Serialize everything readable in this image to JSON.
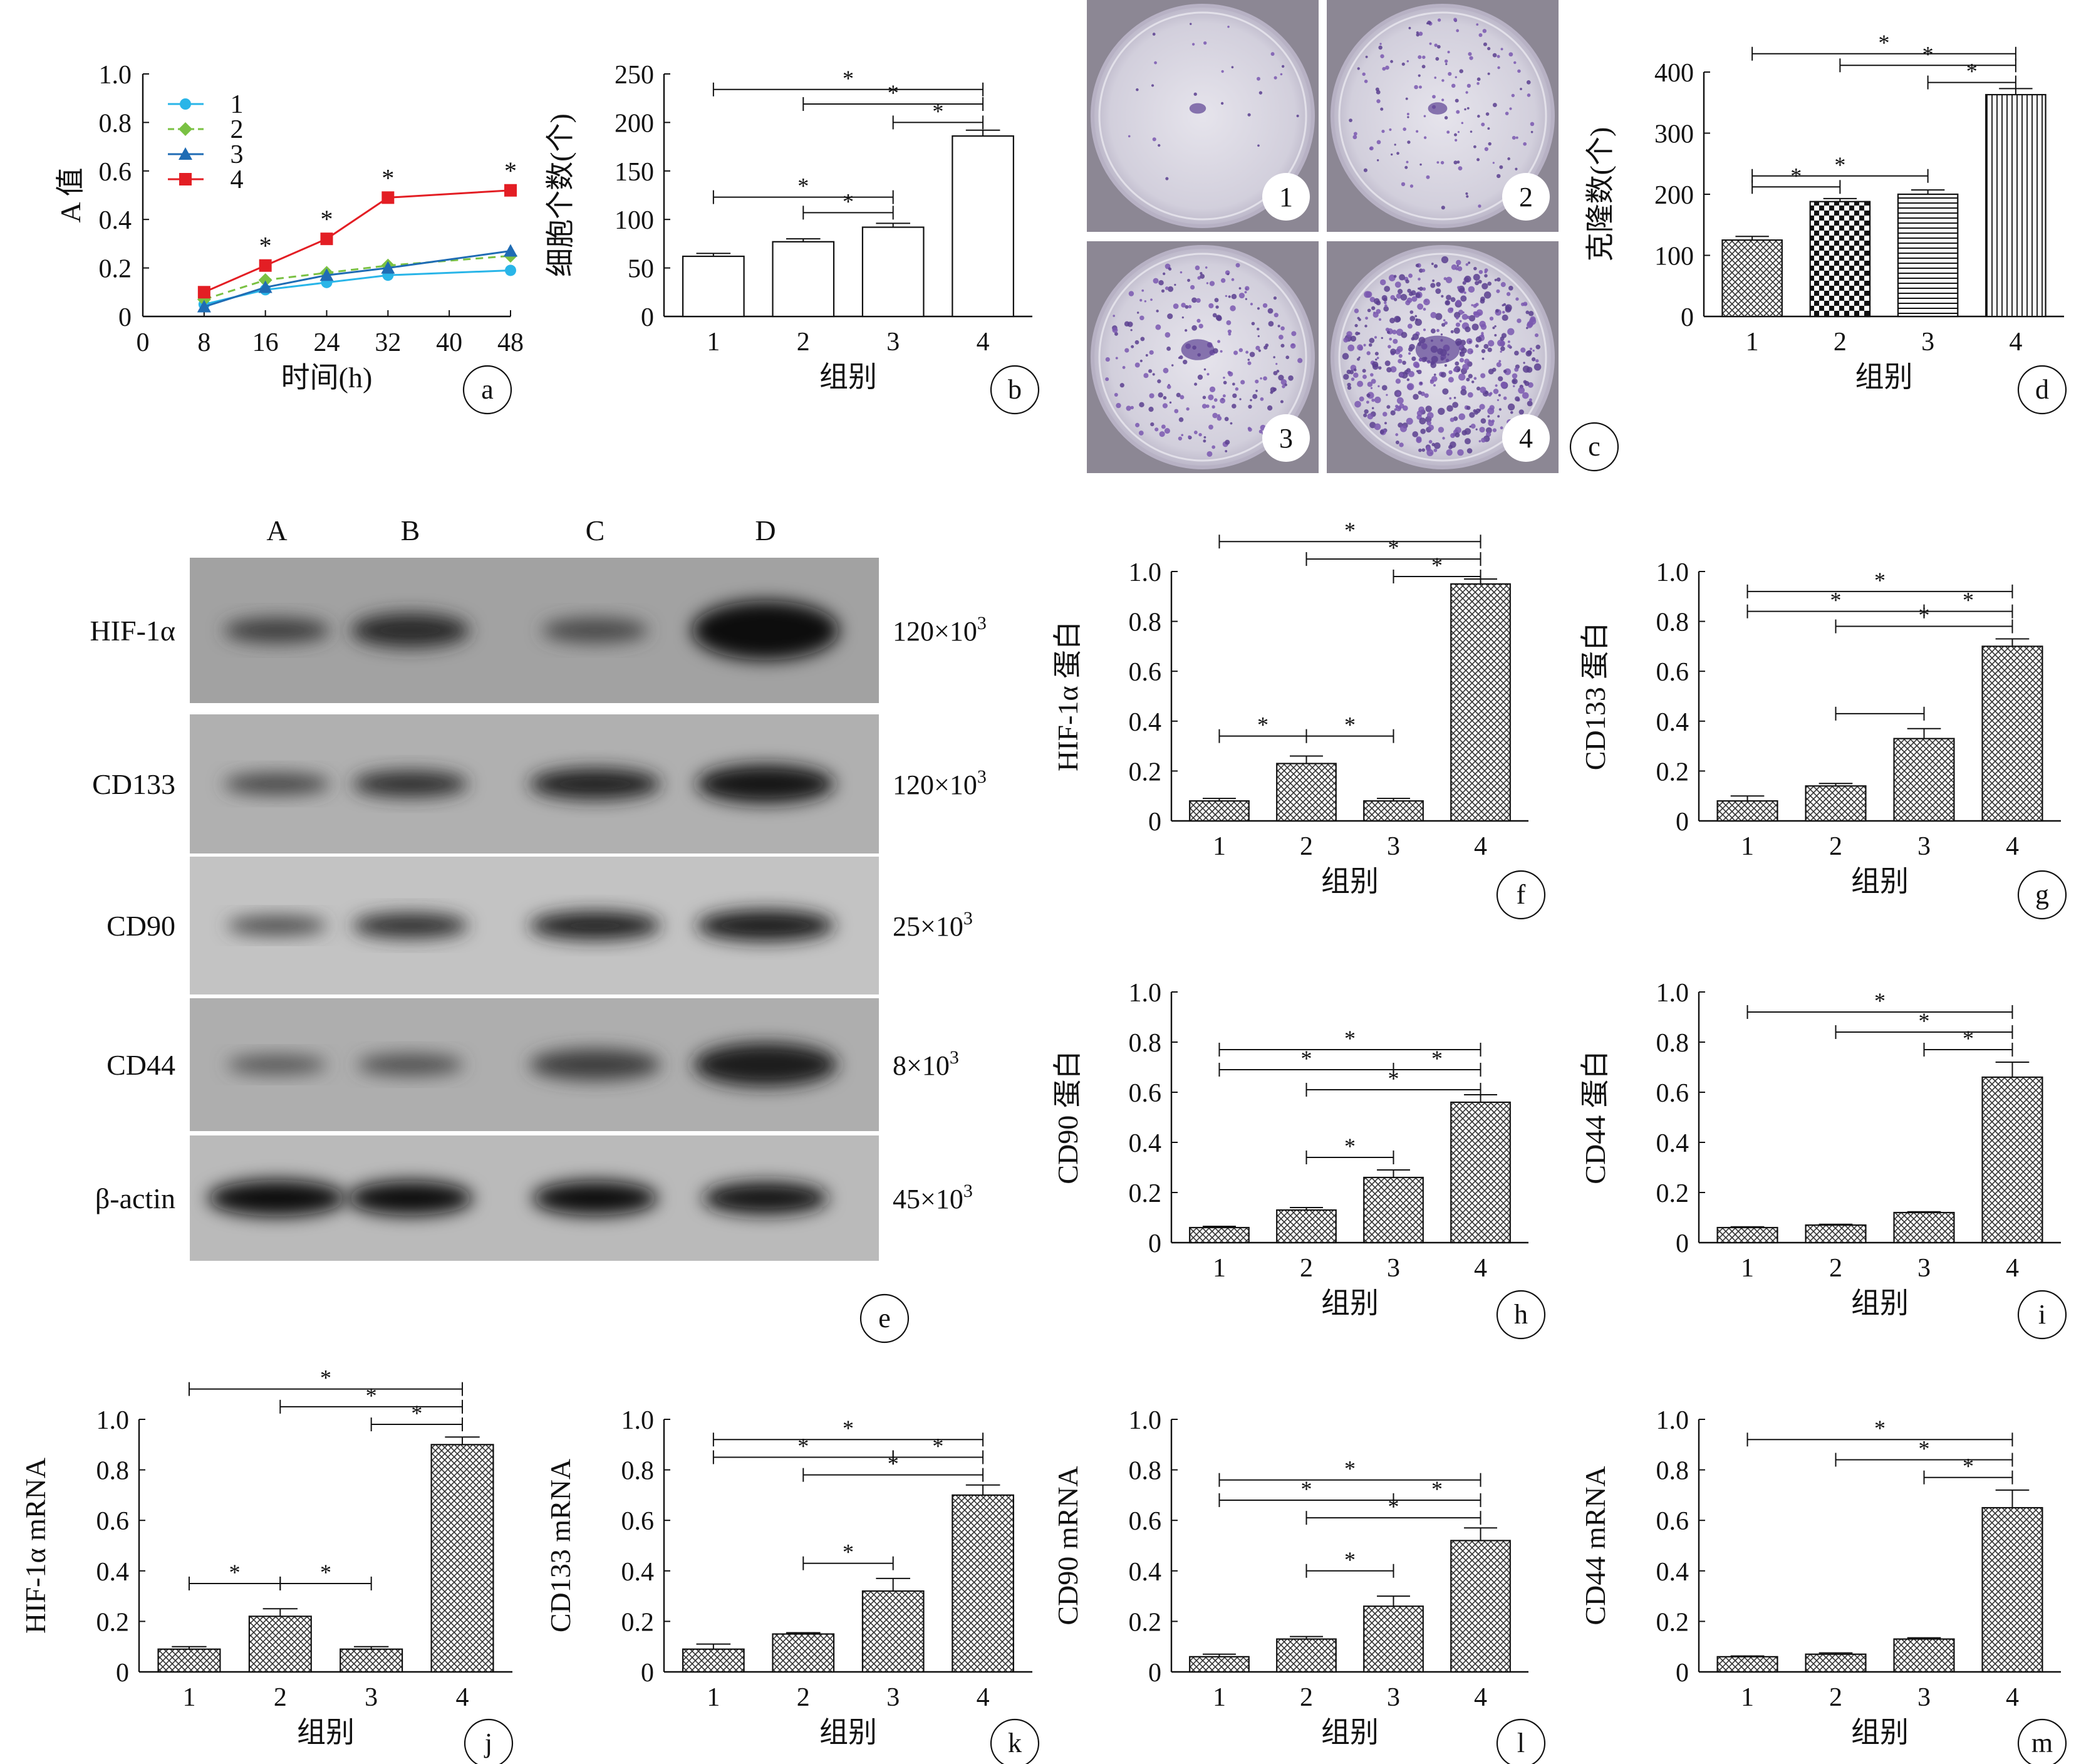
{
  "panel_letters": [
    "a",
    "b",
    "c",
    "d",
    "e",
    "f",
    "g",
    "h",
    "i",
    "j",
    "k",
    "l",
    "m"
  ],
  "colony_dish_labels": [
    "1",
    "2",
    "3",
    "4"
  ],
  "blot": {
    "lanes": [
      "A",
      "B",
      "C",
      "D"
    ],
    "rows": [
      {
        "protein": "HIF-1α",
        "mw": "120×10³"
      },
      {
        "protein": "CD133",
        "mw": "120×10³"
      },
      {
        "protein": "CD90",
        "mw": "25×10³"
      },
      {
        "protein": "CD44",
        "mw": "8×10³"
      },
      {
        "protein": "β-actin",
        "mw": "45×10³"
      }
    ]
  },
  "chart_data": [
    {
      "panel": "a",
      "type": "line",
      "xlabel": "时间(h)",
      "ylabel": "A 值",
      "x": [
        8,
        16,
        24,
        32,
        48
      ],
      "xlim": [
        0,
        48
      ],
      "xticks": [
        0,
        8,
        16,
        24,
        32,
        40,
        48
      ],
      "ylim": [
        0,
        1.0
      ],
      "yticks": [
        "0",
        "0.2",
        "0.4",
        "0.6",
        "0.8",
        "1.0"
      ],
      "series": [
        {
          "name": "1",
          "color": "#29b5e8",
          "marker": "circle",
          "dashed": false,
          "values": [
            0.05,
            0.11,
            0.14,
            0.17,
            0.19
          ]
        },
        {
          "name": "2",
          "color": "#7ac143",
          "marker": "diamond",
          "dashed": true,
          "values": [
            0.07,
            0.15,
            0.18,
            0.21,
            0.25
          ]
        },
        {
          "name": "3",
          "color": "#1f6cb4",
          "marker": "triangle",
          "dashed": false,
          "values": [
            0.04,
            0.12,
            0.17,
            0.2,
            0.27
          ]
        },
        {
          "name": "4",
          "color": "#e31e24",
          "marker": "square",
          "dashed": false,
          "values": [
            0.1,
            0.21,
            0.32,
            0.49,
            0.52
          ]
        }
      ],
      "star_at_x": [
        16,
        24,
        32,
        48
      ],
      "legend": "top-left"
    },
    {
      "panel": "b",
      "type": "bar",
      "xlabel": "组别",
      "ylabel": "细胞个数(个)",
      "categories": [
        "1",
        "2",
        "3",
        "4"
      ],
      "values": [
        62,
        77,
        92,
        186
      ],
      "errors": [
        3,
        3,
        4,
        6
      ],
      "ylim": [
        0,
        250
      ],
      "yticks": [
        "0",
        "50",
        "100",
        "150",
        "200",
        "250"
      ],
      "patterns": [
        "open",
        "open",
        "open",
        "open"
      ],
      "brackets": [
        {
          "from": 1,
          "to": 4,
          "y": 234,
          "label": "*"
        },
        {
          "from": 2,
          "to": 4,
          "y": 219,
          "label": "*"
        },
        {
          "from": 3,
          "to": 4,
          "y": 200,
          "label": "*"
        },
        {
          "from": 1,
          "to": 3,
          "y": 123,
          "label": "*"
        },
        {
          "from": 2,
          "to": 3,
          "y": 107,
          "label": "*"
        }
      ]
    },
    {
      "panel": "d",
      "type": "bar",
      "xlabel": "组别",
      "ylabel": "克隆数(个)",
      "categories": [
        "1",
        "2",
        "3",
        "4"
      ],
      "values": [
        125,
        188,
        200,
        363
      ],
      "errors": [
        6,
        5,
        7,
        10
      ],
      "ylim": [
        0,
        400
      ],
      "yticks": [
        "0",
        "100",
        "200",
        "300",
        "400"
      ],
      "patterns": [
        "cross",
        "checker",
        "hlines",
        "vlines"
      ],
      "brackets": [
        {
          "from": 1,
          "to": 4,
          "y": 430,
          "label": "*"
        },
        {
          "from": 2,
          "to": 4,
          "y": 411,
          "label": "*"
        },
        {
          "from": 3,
          "to": 4,
          "y": 383,
          "label": "*"
        },
        {
          "from": 1,
          "to": 3,
          "y": 230,
          "label": "*"
        },
        {
          "from": 1,
          "to": 2,
          "y": 212,
          "label": "*"
        }
      ]
    },
    {
      "panel": "f",
      "type": "bar",
      "xlabel": "组别",
      "ylabel": "HIF-1α 蛋白",
      "categories": [
        "1",
        "2",
        "3",
        "4"
      ],
      "values": [
        0.08,
        0.23,
        0.08,
        0.95
      ],
      "errors": [
        0.01,
        0.03,
        0.01,
        0.02
      ],
      "ylim": [
        0,
        1.0
      ],
      "yticks": [
        "0",
        "0.2",
        "0.4",
        "0.6",
        "0.8",
        "1.0"
      ],
      "patterns": [
        "cross",
        "cross",
        "cross",
        "cross"
      ],
      "brackets": [
        {
          "from": 1,
          "to": 4,
          "y": 1.12,
          "label": "*"
        },
        {
          "from": 2,
          "to": 4,
          "y": 1.05,
          "label": "*"
        },
        {
          "from": 3,
          "to": 4,
          "y": 0.98,
          "label": "*"
        },
        {
          "from": 1,
          "to": 2,
          "y": 0.34,
          "label": "*"
        },
        {
          "from": 2,
          "to": 3,
          "y": 0.34,
          "label": "*"
        }
      ]
    },
    {
      "panel": "g",
      "type": "bar",
      "xlabel": "组别",
      "ylabel": "CD133 蛋白",
      "categories": [
        "1",
        "2",
        "3",
        "4"
      ],
      "values": [
        0.08,
        0.14,
        0.33,
        0.7
      ],
      "errors": [
        0.02,
        0.01,
        0.04,
        0.03
      ],
      "ylim": [
        0,
        1.0
      ],
      "yticks": [
        "0",
        "0.2",
        "0.4",
        "0.6",
        "0.8",
        "1.0"
      ],
      "patterns": [
        "cross",
        "cross",
        "cross",
        "cross"
      ],
      "brackets": [
        {
          "from": 1,
          "to": 4,
          "y": 0.92,
          "label": "*"
        },
        {
          "from": 1,
          "to": 3,
          "y": 0.84,
          "label": "*"
        },
        {
          "from": 3,
          "to": 4,
          "y": 0.84,
          "label": "*"
        },
        {
          "from": 2,
          "to": 4,
          "y": 0.78,
          "label": "*"
        },
        {
          "from": 2,
          "to": 3,
          "y": 0.43,
          "label": ""
        }
      ]
    },
    {
      "panel": "h",
      "type": "bar",
      "xlabel": "组别",
      "ylabel": "CD90 蛋白",
      "categories": [
        "1",
        "2",
        "3",
        "4"
      ],
      "values": [
        0.06,
        0.13,
        0.26,
        0.56
      ],
      "errors": [
        0.005,
        0.01,
        0.03,
        0.03
      ],
      "ylim": [
        0,
        1.0
      ],
      "yticks": [
        "0",
        "0.2",
        "0.4",
        "0.6",
        "0.8",
        "1.0"
      ],
      "patterns": [
        "cross",
        "cross",
        "cross",
        "cross"
      ],
      "brackets": [
        {
          "from": 1,
          "to": 4,
          "y": 0.77,
          "label": "*"
        },
        {
          "from": 1,
          "to": 3,
          "y": 0.69,
          "label": "*"
        },
        {
          "from": 3,
          "to": 4,
          "y": 0.69,
          "label": "*"
        },
        {
          "from": 2,
          "to": 4,
          "y": 0.61,
          "label": "*"
        },
        {
          "from": 2,
          "to": 3,
          "y": 0.34,
          "label": "*"
        }
      ]
    },
    {
      "panel": "i",
      "type": "bar",
      "xlabel": "组别",
      "ylabel": "CD44 蛋白",
      "categories": [
        "1",
        "2",
        "3",
        "4"
      ],
      "values": [
        0.06,
        0.07,
        0.12,
        0.66
      ],
      "errors": [
        0.003,
        0.003,
        0.003,
        0.06
      ],
      "ylim": [
        0,
        1.0
      ],
      "yticks": [
        "0",
        "0.2",
        "0.4",
        "0.6",
        "0.8",
        "1.0"
      ],
      "patterns": [
        "cross",
        "cross",
        "cross",
        "cross"
      ],
      "brackets": [
        {
          "from": 1,
          "to": 4,
          "y": 0.92,
          "label": "*"
        },
        {
          "from": 2,
          "to": 4,
          "y": 0.84,
          "label": "*"
        },
        {
          "from": 3,
          "to": 4,
          "y": 0.77,
          "label": "*"
        }
      ]
    },
    {
      "panel": "j",
      "type": "bar",
      "xlabel": "组别",
      "ylabel": "HIF-1α mRNA",
      "categories": [
        "1",
        "2",
        "3",
        "4"
      ],
      "values": [
        0.09,
        0.22,
        0.09,
        0.9
      ],
      "errors": [
        0.01,
        0.03,
        0.01,
        0.03
      ],
      "ylim": [
        0,
        1.0
      ],
      "yticks": [
        "0",
        "0.2",
        "0.4",
        "0.6",
        "0.8",
        "1.0"
      ],
      "patterns": [
        "cross",
        "cross",
        "cross",
        "cross"
      ],
      "brackets": [
        {
          "from": 1,
          "to": 4,
          "y": 1.12,
          "label": "*"
        },
        {
          "from": 2,
          "to": 4,
          "y": 1.05,
          "label": "*"
        },
        {
          "from": 3,
          "to": 4,
          "y": 0.98,
          "label": "*"
        },
        {
          "from": 1,
          "to": 2,
          "y": 0.35,
          "label": "*"
        },
        {
          "from": 2,
          "to": 3,
          "y": 0.35,
          "label": "*"
        }
      ]
    },
    {
      "panel": "k",
      "type": "bar",
      "xlabel": "组别",
      "ylabel": "CD133 mRNA",
      "categories": [
        "1",
        "2",
        "3",
        "4"
      ],
      "values": [
        0.09,
        0.15,
        0.32,
        0.7
      ],
      "errors": [
        0.02,
        0.005,
        0.05,
        0.04
      ],
      "ylim": [
        0,
        1.0
      ],
      "yticks": [
        "0",
        "0.2",
        "0.4",
        "0.6",
        "0.8",
        "1.0"
      ],
      "patterns": [
        "cross",
        "cross",
        "cross",
        "cross"
      ],
      "brackets": [
        {
          "from": 1,
          "to": 4,
          "y": 0.92,
          "label": "*"
        },
        {
          "from": 1,
          "to": 3,
          "y": 0.85,
          "label": "*"
        },
        {
          "from": 3,
          "to": 4,
          "y": 0.85,
          "label": "*"
        },
        {
          "from": 2,
          "to": 4,
          "y": 0.78,
          "label": "*"
        },
        {
          "from": 2,
          "to": 3,
          "y": 0.43,
          "label": "*"
        }
      ]
    },
    {
      "panel": "l",
      "type": "bar",
      "xlabel": "组别",
      "ylabel": "CD90 mRNA",
      "categories": [
        "1",
        "2",
        "3",
        "4"
      ],
      "values": [
        0.06,
        0.13,
        0.26,
        0.52
      ],
      "errors": [
        0.01,
        0.01,
        0.04,
        0.05
      ],
      "ylim": [
        0,
        1.0
      ],
      "yticks": [
        "0",
        "0.2",
        "0.4",
        "0.6",
        "0.8",
        "1.0"
      ],
      "patterns": [
        "cross",
        "cross",
        "cross",
        "cross"
      ],
      "brackets": [
        {
          "from": 1,
          "to": 4,
          "y": 0.76,
          "label": "*"
        },
        {
          "from": 1,
          "to": 3,
          "y": 0.68,
          "label": "*"
        },
        {
          "from": 3,
          "to": 4,
          "y": 0.68,
          "label": "*"
        },
        {
          "from": 2,
          "to": 4,
          "y": 0.61,
          "label": "*"
        },
        {
          "from": 2,
          "to": 3,
          "y": 0.4,
          "label": "*"
        }
      ]
    },
    {
      "panel": "m",
      "type": "bar",
      "xlabel": "组别",
      "ylabel": "CD44 mRNA",
      "categories": [
        "1",
        "2",
        "3",
        "4"
      ],
      "values": [
        0.06,
        0.07,
        0.13,
        0.65
      ],
      "errors": [
        0.003,
        0.005,
        0.005,
        0.07
      ],
      "ylim": [
        0,
        1.0
      ],
      "yticks": [
        "0",
        "0.2",
        "0.4",
        "0.6",
        "0.8",
        "1.0"
      ],
      "patterns": [
        "cross",
        "cross",
        "cross",
        "cross"
      ],
      "brackets": [
        {
          "from": 1,
          "to": 4,
          "y": 0.92,
          "label": "*"
        },
        {
          "from": 2,
          "to": 4,
          "y": 0.84,
          "label": "*"
        },
        {
          "from": 3,
          "to": 4,
          "y": 0.77,
          "label": "*"
        }
      ]
    }
  ]
}
